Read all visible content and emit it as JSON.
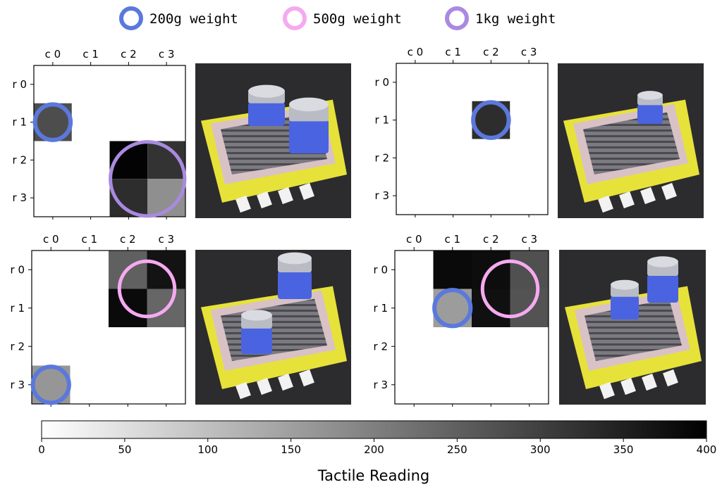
{
  "legend": {
    "items": [
      {
        "label": "200g weight",
        "color": "#5b78dc"
      },
      {
        "label": "500g weight",
        "color": "#f5aaf0"
      },
      {
        "label": "1kg weight",
        "color": "#a98ae0"
      }
    ]
  },
  "chart_data": {
    "type": "heatmap",
    "columns": [
      "c 0",
      "c 1",
      "c 2",
      "c 3"
    ],
    "rows": [
      "r 0",
      "r 1",
      "r 2",
      "r 3"
    ],
    "colorbar": {
      "label": "Tactile Reading",
      "min": 0,
      "max": 400,
      "ticks": [
        0,
        50,
        100,
        150,
        200,
        250,
        300,
        350,
        400
      ],
      "colormap": "white-to-black"
    },
    "panels": [
      {
        "name": "top-left",
        "grid": [
          [
            0,
            0,
            0,
            0
          ],
          [
            280,
            0,
            0,
            0
          ],
          [
            0,
            0,
            395,
            320
          ],
          [
            0,
            0,
            330,
            175
          ]
        ],
        "weights": [
          {
            "type": "200g",
            "row": 1,
            "col": 0
          },
          {
            "type": "1kg",
            "row": 2.5,
            "col": 2.5
          }
        ]
      },
      {
        "name": "top-right",
        "grid": [
          [
            0,
            0,
            0,
            0
          ],
          [
            0,
            0,
            330,
            0
          ],
          [
            0,
            0,
            0,
            0
          ],
          [
            0,
            0,
            0,
            0
          ]
        ],
        "weights": [
          {
            "type": "200g",
            "row": 1,
            "col": 2
          }
        ]
      },
      {
        "name": "bottom-left",
        "grid": [
          [
            0,
            0,
            250,
            370
          ],
          [
            0,
            0,
            385,
            240
          ],
          [
            0,
            0,
            0,
            0
          ],
          [
            165,
            0,
            0,
            0
          ]
        ],
        "weights": [
          {
            "type": "500g",
            "row": 0.5,
            "col": 2.5
          },
          {
            "type": "200g",
            "row": 3,
            "col": 0
          }
        ]
      },
      {
        "name": "bottom-right",
        "grid": [
          [
            0,
            385,
            380,
            275
          ],
          [
            0,
            155,
            375,
            270
          ],
          [
            0,
            0,
            0,
            0
          ],
          [
            0,
            0,
            0,
            0
          ]
        ],
        "weights": [
          {
            "type": "500g",
            "row": 0.5,
            "col": 2.5
          },
          {
            "type": "200g",
            "row": 1,
            "col": 1
          }
        ]
      }
    ]
  }
}
